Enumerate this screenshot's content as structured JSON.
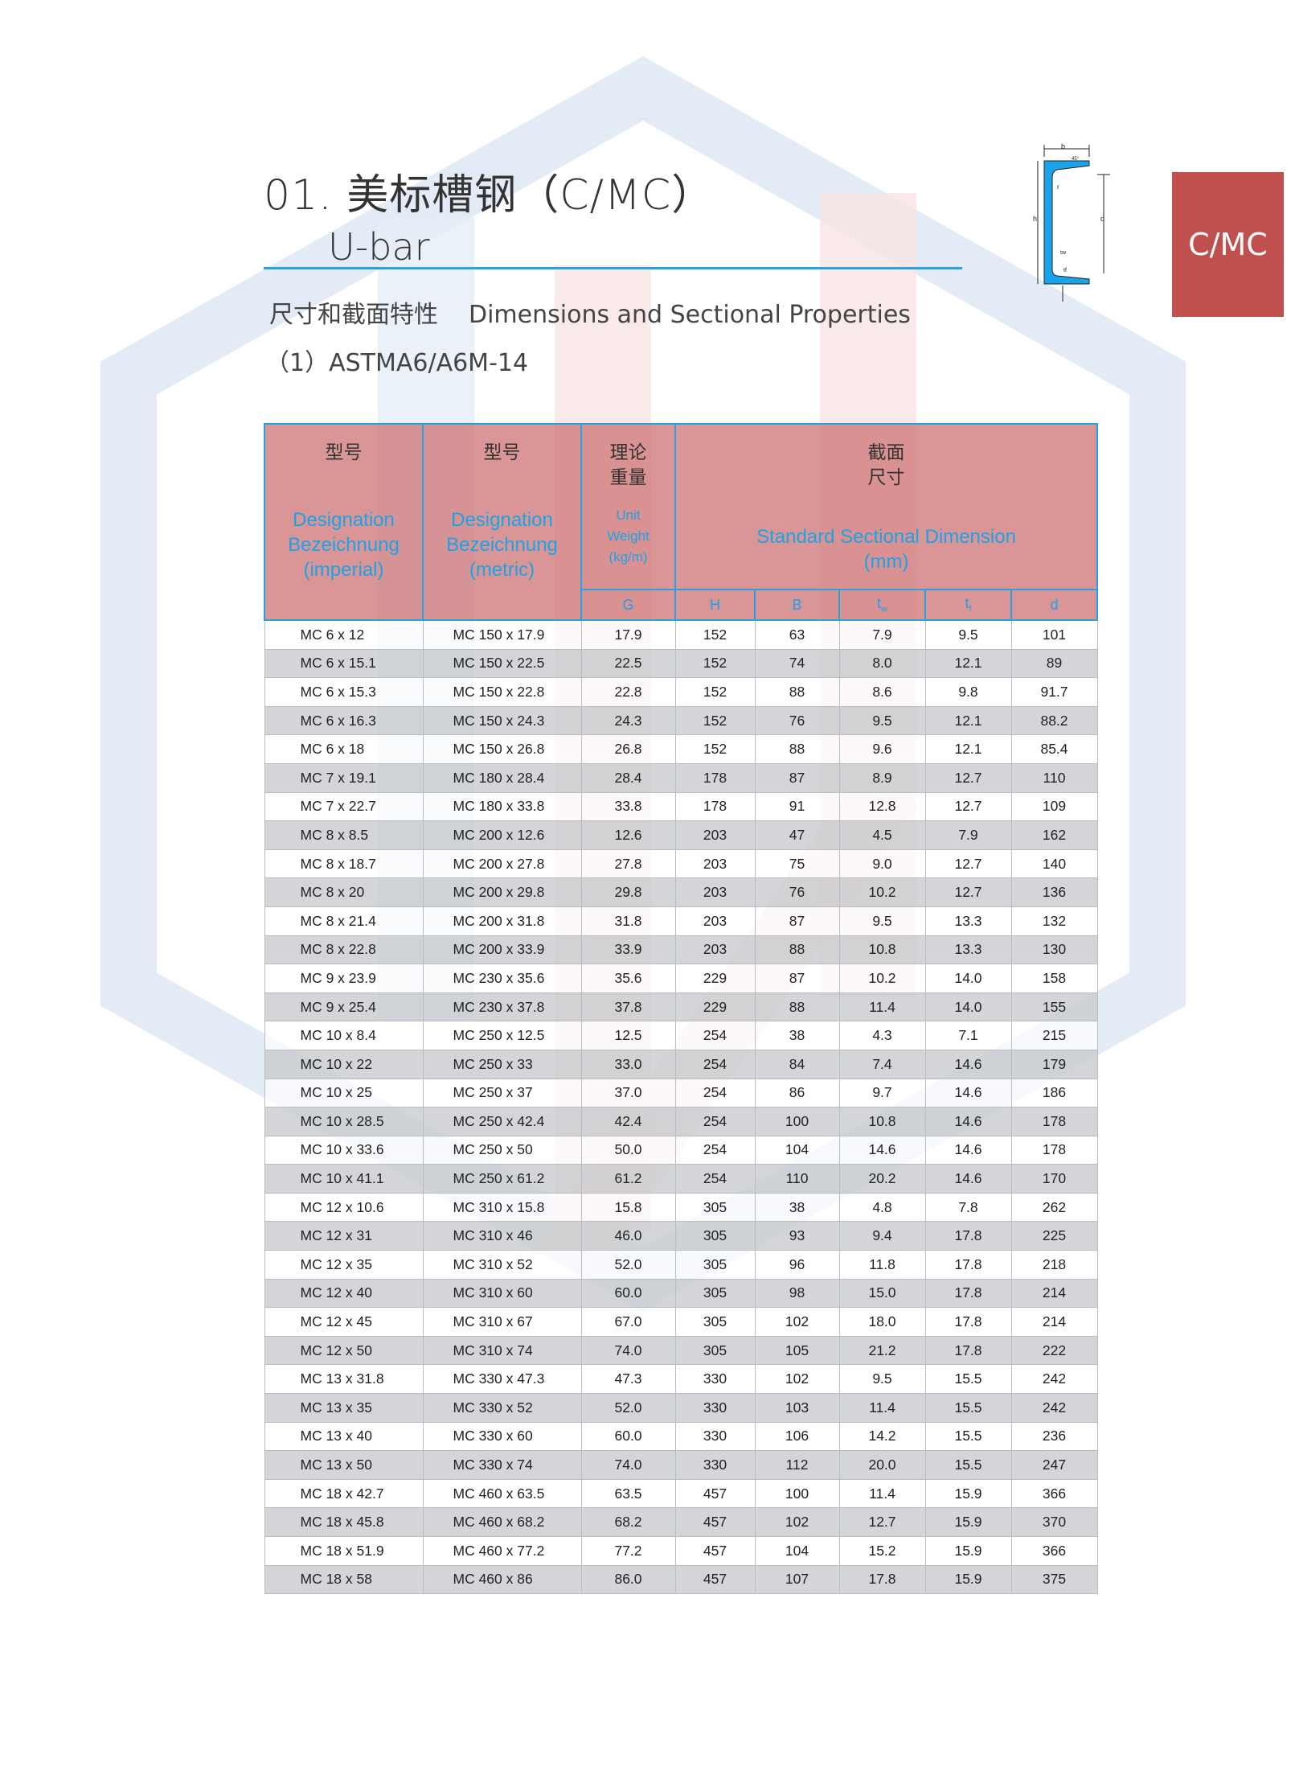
{
  "header": {
    "title": "01. 美标槽钢（C/MC）",
    "subtitle": "U-bar",
    "section_cn": "尺寸和截面特性",
    "section_en": "Dimensions and Sectional Properties",
    "standard": "（1）ASTMA6/A6M-14",
    "badge": "C/MC",
    "accent_color": "#27a4df",
    "badge_color": "#c0504d"
  },
  "diagram": {
    "labels": [
      "b",
      "45°",
      "r",
      "h",
      "d",
      "tw",
      "tf"
    ]
  },
  "table": {
    "col1": {
      "cn": "型号",
      "en1": "Designation",
      "en2": "Bezeichnung",
      "en3": "(imperial)"
    },
    "col2": {
      "cn": "型号",
      "en1": "Designation",
      "en2": "Bezeichnung",
      "en3": "(metric)"
    },
    "col3": {
      "cn1": "理论",
      "cn2": "重量",
      "en1": "Unit",
      "en2": "Weight",
      "en3": "(kg/m)"
    },
    "col4": {
      "cn1": "截面",
      "cn2": "尺寸",
      "en1": "Standard Sectional  Dimension",
      "en2": "(mm)"
    },
    "sub": {
      "G": "G",
      "H": "H",
      "B": "B",
      "tw": "t",
      "tw_sub": "w",
      "tf": "t",
      "tf_sub": "f",
      "d": "d"
    },
    "rows": [
      [
        "MC 6 x 12",
        "MC 150 x 17.9",
        "17.9",
        "152",
        "63",
        "7.9",
        "9.5",
        "101"
      ],
      [
        "MC 6 x 15.1",
        "MC 150 x 22.5",
        "22.5",
        "152",
        "74",
        "8.0",
        "12.1",
        "89"
      ],
      [
        "MC 6 x 15.3",
        "MC 150 x 22.8",
        "22.8",
        "152",
        "88",
        "8.6",
        "9.8",
        "91.7"
      ],
      [
        "MC 6 x 16.3",
        "MC 150 x 24.3",
        "24.3",
        "152",
        "76",
        "9.5",
        "12.1",
        "88.2"
      ],
      [
        "MC 6 x 18",
        "MC 150 x 26.8",
        "26.8",
        "152",
        "88",
        "9.6",
        "12.1",
        "85.4"
      ],
      [
        "MC 7 x 19.1",
        "MC 180 x 28.4",
        "28.4",
        "178",
        "87",
        "8.9",
        "12.7",
        "110"
      ],
      [
        "MC 7 x 22.7",
        "MC 180 x 33.8",
        "33.8",
        "178",
        "91",
        "12.8",
        "12.7",
        "109"
      ],
      [
        "MC 8 x 8.5",
        "MC 200 x 12.6",
        "12.6",
        "203",
        "47",
        "4.5",
        "7.9",
        "162"
      ],
      [
        "MC 8 x 18.7",
        "MC 200 x 27.8",
        "27.8",
        "203",
        "75",
        "9.0",
        "12.7",
        "140"
      ],
      [
        "MC 8 x 20",
        "MC 200 x 29.8",
        "29.8",
        "203",
        "76",
        "10.2",
        "12.7",
        "136"
      ],
      [
        "MC 8 x 21.4",
        "MC 200 x 31.8",
        "31.8",
        "203",
        "87",
        "9.5",
        "13.3",
        "132"
      ],
      [
        "MC 8 x 22.8",
        "MC 200 x 33.9",
        "33.9",
        "203",
        "88",
        "10.8",
        "13.3",
        "130"
      ],
      [
        "MC 9 x 23.9",
        "MC 230 x 35.6",
        "35.6",
        "229",
        "87",
        "10.2",
        "14.0",
        "158"
      ],
      [
        "MC 9 x 25.4",
        "MC 230 x 37.8",
        "37.8",
        "229",
        "88",
        "11.4",
        "14.0",
        "155"
      ],
      [
        "MC 10 x 8.4",
        "MC 250 x 12.5",
        "12.5",
        "254",
        "38",
        "4.3",
        "7.1",
        "215"
      ],
      [
        "MC 10 x 22",
        "MC 250 x 33",
        "33.0",
        "254",
        "84",
        "7.4",
        "14.6",
        "179"
      ],
      [
        "MC 10 x 25",
        "MC 250 x 37",
        "37.0",
        "254",
        "86",
        "9.7",
        "14.6",
        "186"
      ],
      [
        "MC 10 x 28.5",
        "MC 250 x 42.4",
        "42.4",
        "254",
        "100",
        "10.8",
        "14.6",
        "178"
      ],
      [
        "MC 10 x 33.6",
        "MC 250 x 50",
        "50.0",
        "254",
        "104",
        "14.6",
        "14.6",
        "178"
      ],
      [
        "MC 10 x 41.1",
        "MC 250 x 61.2",
        "61.2",
        "254",
        "110",
        "20.2",
        "14.6",
        "170"
      ],
      [
        "MC 12 x 10.6",
        "MC 310 x 15.8",
        "15.8",
        "305",
        "38",
        "4.8",
        "7.8",
        "262"
      ],
      [
        "MC 12 x 31",
        "MC 310 x 46",
        "46.0",
        "305",
        "93",
        "9.4",
        "17.8",
        "225"
      ],
      [
        "MC 12 x 35",
        "MC 310 x 52",
        "52.0",
        "305",
        "96",
        "11.8",
        "17.8",
        "218"
      ],
      [
        "MC 12 x 40",
        "MC 310 x 60",
        "60.0",
        "305",
        "98",
        "15.0",
        "17.8",
        "214"
      ],
      [
        "MC 12 x 45",
        "MC 310 x 67",
        "67.0",
        "305",
        "102",
        "18.0",
        "17.8",
        "214"
      ],
      [
        "MC 12 x 50",
        "MC 310 x 74",
        "74.0",
        "305",
        "105",
        "21.2",
        "17.8",
        "222"
      ],
      [
        "MC 13 x 31.8",
        "MC 330 x 47.3",
        "47.3",
        "330",
        "102",
        "9.5",
        "15.5",
        "242"
      ],
      [
        "MC 13 x 35",
        "MC 330 x 52",
        "52.0",
        "330",
        "103",
        "11.4",
        "15.5",
        "242"
      ],
      [
        "MC 13 x 40",
        "MC 330 x 60",
        "60.0",
        "330",
        "106",
        "14.2",
        "15.5",
        "236"
      ],
      [
        "MC 13 x 50",
        "MC 330 x 74",
        "74.0",
        "330",
        "112",
        "20.0",
        "15.5",
        "247"
      ],
      [
        "MC 18 x 42.7",
        "MC 460 x 63.5",
        "63.5",
        "457",
        "100",
        "11.4",
        "15.9",
        "366"
      ],
      [
        "MC 18 x 45.8",
        "MC 460 x 68.2",
        "68.2",
        "457",
        "102",
        "12.7",
        "15.9",
        "370"
      ],
      [
        "MC 18 x 51.9",
        "MC 460 x 77.2",
        "77.2",
        "457",
        "104",
        "15.2",
        "15.9",
        "366"
      ],
      [
        "MC 18 x 58",
        "MC 460 x 86",
        "86.0",
        "457",
        "107",
        "17.8",
        "15.9",
        "375"
      ]
    ]
  }
}
